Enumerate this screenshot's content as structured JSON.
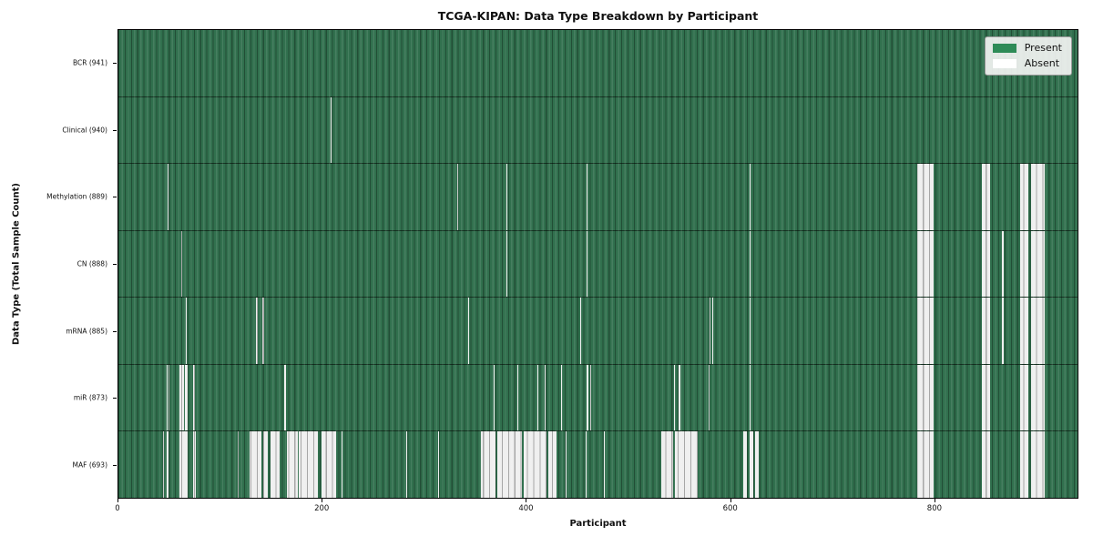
{
  "chart_data": {
    "type": "heatmap",
    "title": "TCGA-KIPAN: Data Type Breakdown by Participant",
    "xlabel": "Participant",
    "ylabel": "Data Type (Total Sample Count)",
    "x_ticks": [
      "0",
      "200",
      "400",
      "600",
      "800"
    ],
    "x_tick_values": [
      0,
      200,
      400,
      600,
      800
    ],
    "n_participants": 941,
    "grid": false,
    "legend_position": "upper right",
    "legend": [
      {
        "label": "Present",
        "color": "#2e8b57"
      },
      {
        "label": "Absent",
        "color": "#ffffff"
      }
    ],
    "colors": {
      "present_cell": "#31704e",
      "absent_cell": "#efefef",
      "cell_edge": "#0a140c",
      "plot_border": "#000000"
    },
    "value_encoding": "1 = data type present for participant (green), 0 = absent (white)",
    "rows": [
      {
        "label": "BCR (941)",
        "data_type": "BCR",
        "total_samples": 941,
        "absent_runs": []
      },
      {
        "label": "Clinical (940)",
        "data_type": "Clinical",
        "total_samples": 940,
        "absent_runs": [
          [
            208,
            209
          ]
        ]
      },
      {
        "label": "Methylation (889)",
        "data_type": "Methylation",
        "total_samples": 889,
        "absent_runs": [
          [
            48,
            49
          ],
          [
            332,
            333
          ],
          [
            381,
            382
          ],
          [
            459,
            460
          ],
          [
            619,
            620
          ],
          [
            784,
            800
          ],
          [
            847,
            855
          ],
          [
            885,
            893
          ],
          [
            895,
            909
          ]
        ]
      },
      {
        "label": "CN (888)",
        "data_type": "CN",
        "total_samples": 888,
        "absent_runs": [
          [
            62,
            63
          ],
          [
            381,
            382
          ],
          [
            459,
            460
          ],
          [
            619,
            620
          ],
          [
            784,
            800
          ],
          [
            847,
            855
          ],
          [
            867,
            869
          ],
          [
            885,
            893
          ],
          [
            895,
            909
          ]
        ]
      },
      {
        "label": "mRNA (885)",
        "data_type": "mRNA",
        "total_samples": 885,
        "absent_runs": [
          [
            66,
            67
          ],
          [
            135,
            137
          ],
          [
            141,
            143
          ],
          [
            343,
            344
          ],
          [
            453,
            454
          ],
          [
            580,
            581
          ],
          [
            583,
            584
          ],
          [
            619,
            620
          ],
          [
            784,
            800
          ],
          [
            847,
            855
          ],
          [
            867,
            869
          ],
          [
            885,
            893
          ],
          [
            895,
            909
          ]
        ]
      },
      {
        "label": "miR (873)",
        "data_type": "miR",
        "total_samples": 873,
        "absent_runs": [
          [
            47,
            48
          ],
          [
            49,
            50
          ],
          [
            60,
            64
          ],
          [
            65,
            68
          ],
          [
            73,
            75
          ],
          [
            163,
            164
          ],
          [
            368,
            369
          ],
          [
            391,
            392
          ],
          [
            411,
            412
          ],
          [
            418,
            419
          ],
          [
            434,
            435
          ],
          [
            459,
            461
          ],
          [
            463,
            464
          ],
          [
            545,
            546
          ],
          [
            550,
            551
          ],
          [
            579,
            580
          ],
          [
            619,
            620
          ],
          [
            784,
            800
          ],
          [
            847,
            855
          ],
          [
            885,
            893
          ],
          [
            895,
            909
          ]
        ]
      },
      {
        "label": "MAF (693)",
        "data_type": "MAF",
        "total_samples": 693,
        "absent_runs": [
          [
            44,
            45
          ],
          [
            47,
            49
          ],
          [
            60,
            68
          ],
          [
            73,
            76
          ],
          [
            117,
            118
          ],
          [
            129,
            140
          ],
          [
            142,
            147
          ],
          [
            149,
            158
          ],
          [
            165,
            176
          ],
          [
            177,
            196
          ],
          [
            199,
            214
          ],
          [
            219,
            220
          ],
          [
            282,
            283
          ],
          [
            314,
            315
          ],
          [
            356,
            370
          ],
          [
            372,
            396
          ],
          [
            398,
            420
          ],
          [
            422,
            430
          ],
          [
            439,
            440
          ],
          [
            458,
            459
          ],
          [
            476,
            477
          ],
          [
            533,
            544
          ],
          [
            546,
            568
          ],
          [
            613,
            617
          ],
          [
            619,
            623
          ],
          [
            625,
            628
          ],
          [
            784,
            800
          ],
          [
            847,
            855
          ],
          [
            885,
            893
          ],
          [
            895,
            909
          ]
        ]
      }
    ]
  }
}
